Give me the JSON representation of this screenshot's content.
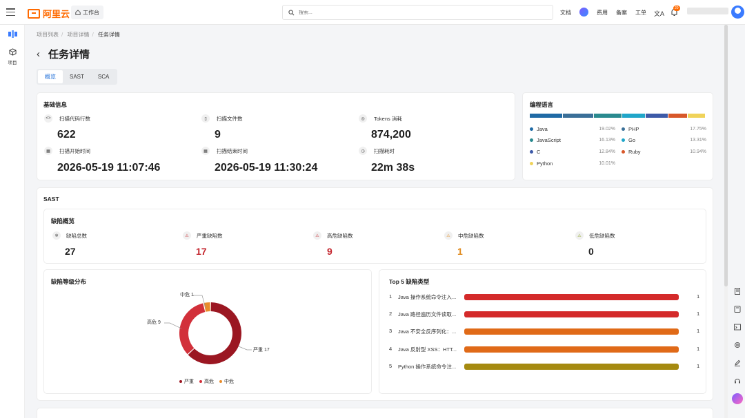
{
  "header": {
    "logo_text": "阿里云",
    "workbench": "工作台",
    "search_placeholder": "搜索...",
    "nav": [
      "文档",
      "费用",
      "备案",
      "工单"
    ],
    "notif_count": "20"
  },
  "rail": {
    "project": "项目"
  },
  "breadcrumb": [
    "项目列表",
    "项目详情",
    "任务详情"
  ],
  "page_title": "任务详情",
  "tabs": [
    "概览",
    "SAST",
    "SCA"
  ],
  "basic": {
    "title": "基础信息",
    "stats": [
      {
        "label": "扫描代码行数",
        "value": "622",
        "icon": "code-icon"
      },
      {
        "label": "扫描文件数",
        "value": "9",
        "icon": "file-icon"
      },
      {
        "label": "Tokens 消耗",
        "value": "874,200",
        "icon": "token-icon"
      },
      {
        "label": "扫描开始时间",
        "value": "2026-05-19 11:07:46",
        "icon": "calendar-icon"
      },
      {
        "label": "扫描结束时间",
        "value": "2026-05-19 11:30:24",
        "icon": "calendar-icon"
      },
      {
        "label": "扫描耗时",
        "value": "22m 38s",
        "icon": "clock-icon"
      }
    ]
  },
  "languages": {
    "title": "编程语言",
    "items": [
      {
        "name": "Java",
        "pct": "19.02%",
        "color": "#1f6aa5"
      },
      {
        "name": "PHP",
        "pct": "17.75%",
        "color": "#3a6f98"
      },
      {
        "name": "JavaScript",
        "pct": "16.13%",
        "color": "#2a8a8f"
      },
      {
        "name": "Go",
        "pct": "13.31%",
        "color": "#20a6c9"
      },
      {
        "name": "C",
        "pct": "12.84%",
        "color": "#3d5aa8"
      },
      {
        "name": "Ruby",
        "pct": "10.94%",
        "color": "#d8582a"
      },
      {
        "name": "Python",
        "pct": "10.01%",
        "color": "#f0d35a"
      }
    ]
  },
  "sast": {
    "title": "SAST",
    "overview_title": "缺陷概览",
    "bugs": [
      {
        "label": "缺陷总数",
        "value": "27",
        "color": "#1f1f1f",
        "icon": "bug-icon"
      },
      {
        "label": "严重缺陷数",
        "value": "17",
        "color": "#c4262e",
        "icon": "warning-icon"
      },
      {
        "label": "高危缺陷数",
        "value": "9",
        "color": "#c4262e",
        "icon": "warning-icon"
      },
      {
        "label": "中危缺陷数",
        "value": "1",
        "color": "#e08a1e",
        "icon": "warning-icon"
      },
      {
        "label": "低危缺陷数",
        "value": "0",
        "color": "#1f1f1f",
        "icon": "warning-icon"
      }
    ],
    "dist_title": "缺陷等级分布",
    "top5_title": "Top 5 缺陷类型",
    "top5": [
      {
        "rank": "1",
        "name": "Java 操作系统命令注入...",
        "count": "1",
        "color": "#d42a2a"
      },
      {
        "rank": "2",
        "name": "Java 路径遍历文件读取...",
        "count": "1",
        "color": "#d42a2a"
      },
      {
        "rank": "3",
        "name": "Java 不安全反序列化：...",
        "count": "1",
        "color": "#e06a18"
      },
      {
        "rank": "4",
        "name": "Java 反射型 XSS：HTT...",
        "count": "1",
        "color": "#e06a18"
      },
      {
        "rank": "5",
        "name": "Python 操作系统命令注...",
        "count": "1",
        "color": "#a58a10"
      }
    ]
  },
  "chart_data": {
    "type": "pie",
    "categories": [
      "严重",
      "高危",
      "中危"
    ],
    "values": [
      17,
      9,
      1
    ],
    "colors": [
      "#9b1722",
      "#d2303a",
      "#e88c2c"
    ],
    "data_labels": [
      "严重 17",
      "高危 9",
      "中危 1"
    ],
    "title": "缺陷等级分布",
    "legend": "bottom"
  }
}
